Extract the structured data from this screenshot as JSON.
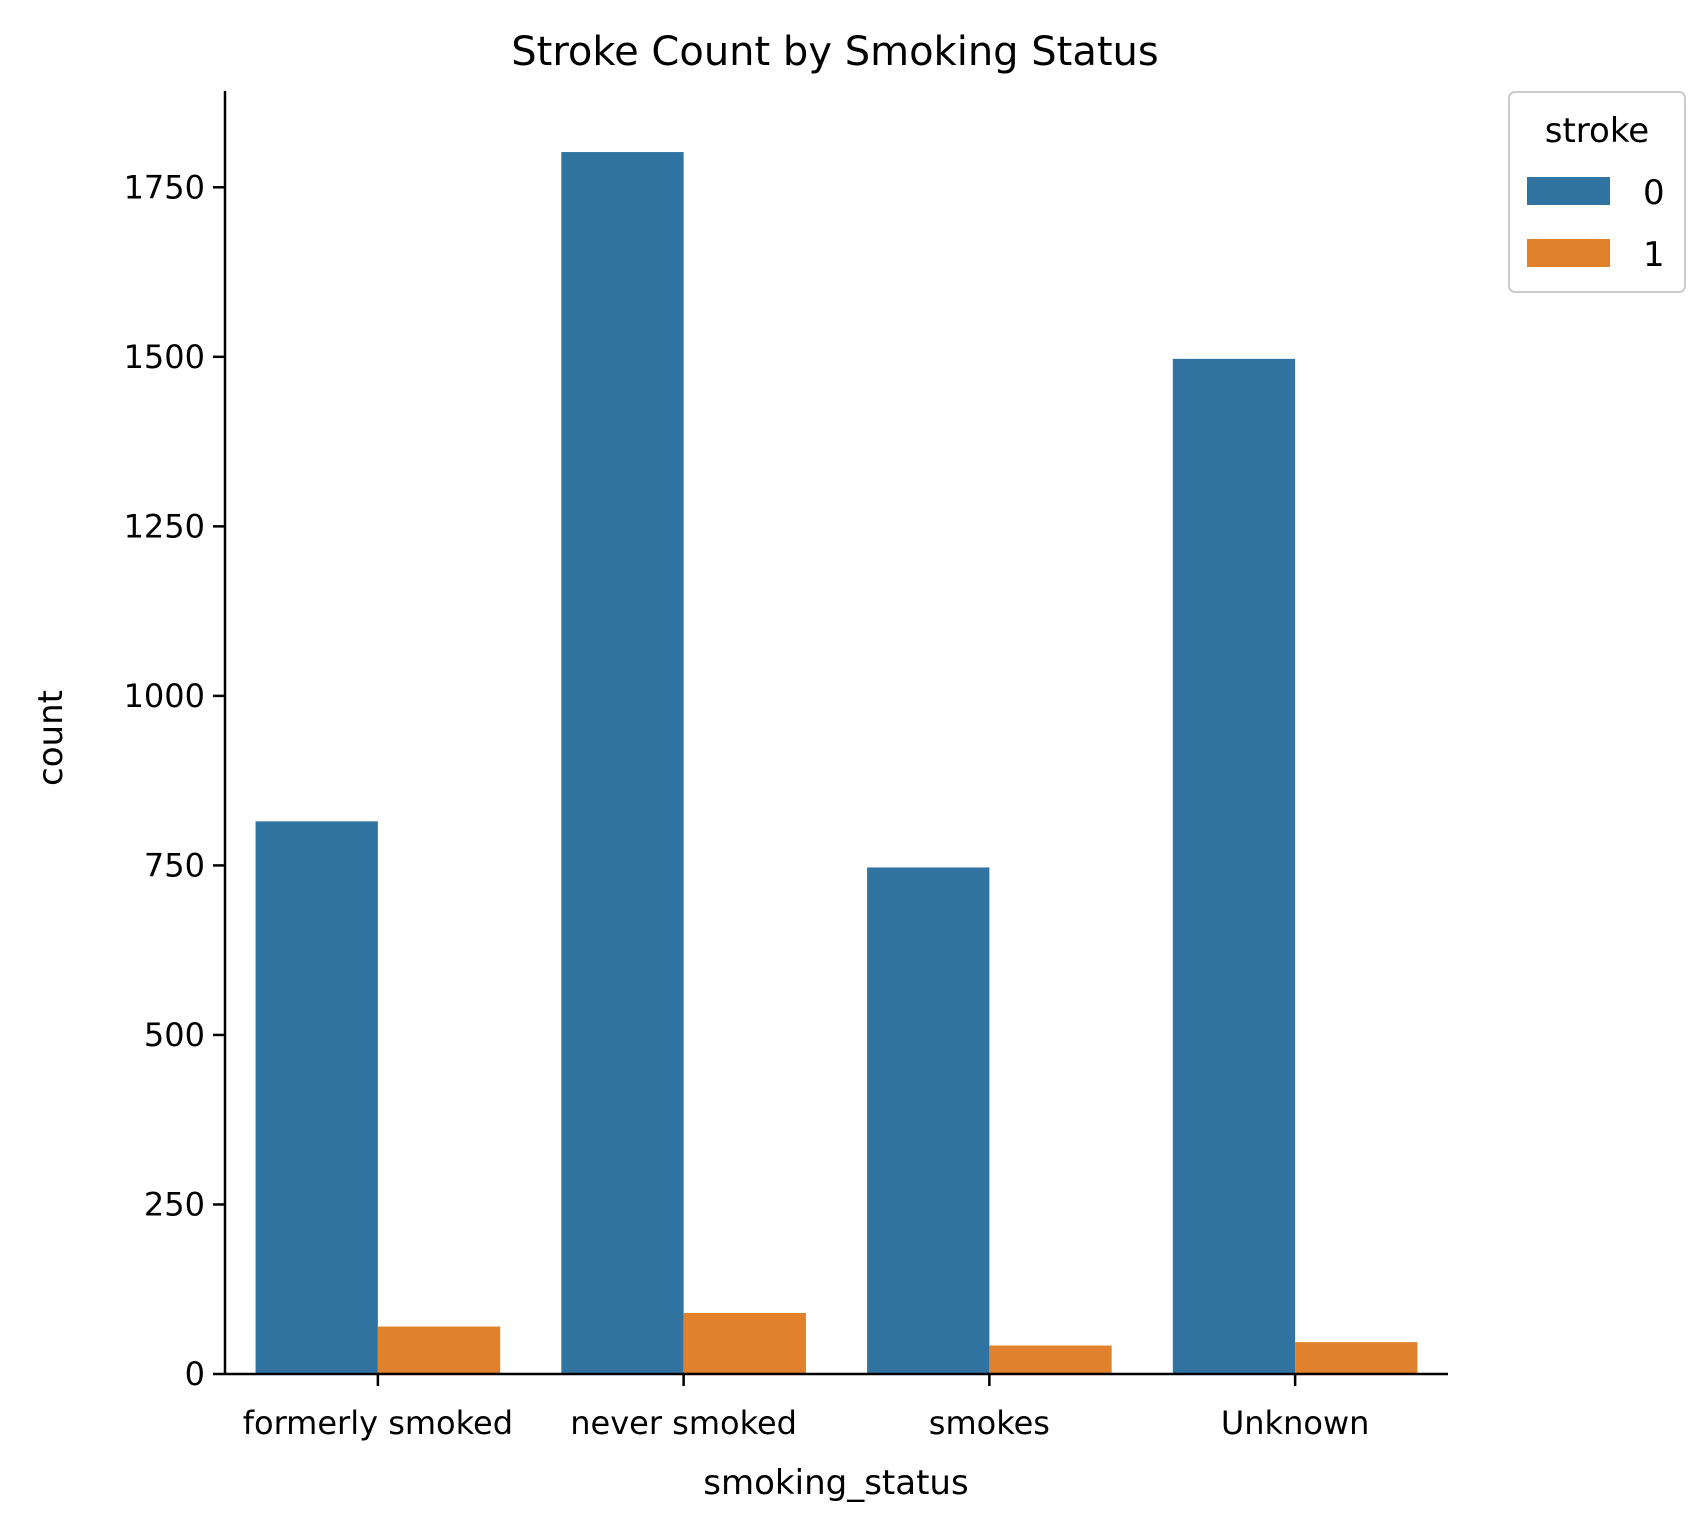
{
  "chart_data": {
    "type": "bar",
    "title": "Stroke Count by Smoking Status",
    "xlabel": "smoking_status",
    "ylabel": "count",
    "categories": [
      "formerly smoked",
      "never smoked",
      "smokes",
      "Unknown"
    ],
    "series": [
      {
        "name": "0",
        "color": "#3274a1",
        "values": [
          815,
          1802,
          747,
          1497
        ]
      },
      {
        "name": "1",
        "color": "#e1812c",
        "values": [
          70,
          90,
          42,
          47
        ]
      }
    ],
    "ylim": [
      0,
      1892
    ],
    "yticks": [
      0,
      250,
      500,
      750,
      1000,
      1250,
      1500,
      1750
    ],
    "grid": false,
    "legend": {
      "title": "stroke",
      "position": "outside-top-right"
    }
  }
}
